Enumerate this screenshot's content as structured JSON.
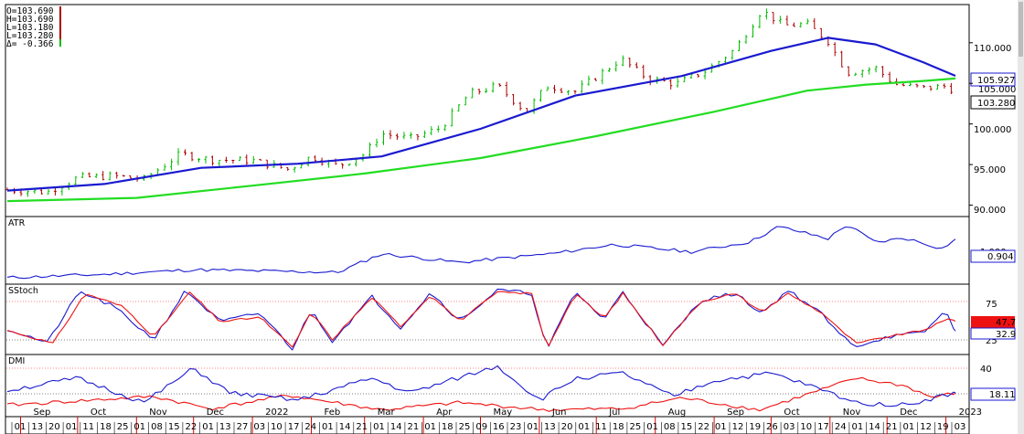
{
  "ohlc": {
    "open": "O=103.690",
    "high": "H=103.690",
    "low": "L=103.180",
    "last": "L=103.280",
    "delta": "Δ= -0.366"
  },
  "colors": {
    "up_bar": "#00bb00",
    "down_bar": "#aa0000",
    "ma_fast": "#1a1ad0",
    "ma_slow": "#22dd22",
    "stoch_k": "#ee1111",
    "stoch_d": "#1a1ad0",
    "dmi_plus": "#1a1ad0",
    "dmi_minus": "#ee1111",
    "month_tick": "#e00000",
    "panel_bg": "#ffffff"
  },
  "panels": {
    "atr": {
      "title": "ATR",
      "badge": "0.904",
      "under_badge": "1.000",
      "badge_color": "#1a1ad0"
    },
    "stoch": {
      "title": "SStoch",
      "label75": "75",
      "label25": "25",
      "badge_k": "47.7",
      "badge_d": "32.9"
    },
    "dmi": {
      "title": "DMI",
      "label40": "40",
      "badge": "18.11"
    }
  },
  "price_axis": {
    "ticks": [
      "110.000",
      "105.000",
      "100.000",
      "95.000",
      "90.000"
    ],
    "badge_ma": "105.927",
    "badge_mid": "105.000",
    "badge_last": "103.280"
  },
  "x_axis": {
    "months": [
      "Sep",
      "Oct",
      "Nov",
      "Dec",
      "2022",
      "Feb",
      "Mar",
      "Apr",
      "May",
      "Jun",
      "Jul",
      "Aug",
      "Sep",
      "Oct",
      "Nov",
      "Dec",
      "2023"
    ],
    "days": [
      "01",
      "13",
      "20",
      "01",
      "11",
      "18",
      "25",
      "01",
      "08",
      "15",
      "22",
      "01",
      "13",
      "27",
      "03",
      "10",
      "17",
      "24",
      "01",
      "14",
      "21",
      "01",
      "14",
      "21",
      "01",
      "18",
      "25",
      "09",
      "16",
      "23",
      "01",
      "13",
      "20",
      "01",
      "11",
      "18",
      "25",
      "01",
      "08",
      "15",
      "22",
      "01",
      "12",
      "19",
      "26",
      "03",
      "10",
      "17",
      "24",
      "01",
      "14",
      "21",
      "01",
      "12",
      "19",
      "03"
    ]
  },
  "chart_data": [
    {
      "type": "line",
      "title": "",
      "ylim": [
        88.6,
        114.7
      ],
      "yticks": [
        110,
        105,
        100,
        95,
        90
      ],
      "x_range": [
        "2021-08-25",
        "2023-01-06"
      ],
      "grid": false,
      "series": [
        {
          "role": "price",
          "values": [
            [
              "2021-08-25",
              91.9
            ],
            [
              "2021-09-15",
              91.6
            ],
            [
              "2021-10-01",
              93.4
            ],
            [
              "2021-10-20",
              93.6
            ],
            [
              "2021-11-05",
              93.2
            ],
            [
              "2021-11-24",
              96.3
            ],
            [
              "2021-12-10",
              95.6
            ],
            [
              "2022-01-01",
              95.5
            ],
            [
              "2022-01-20",
              94.4
            ],
            [
              "2022-02-01",
              96.0
            ],
            [
              "2022-02-15",
              94.8
            ],
            [
              "2022-03-01",
              96.3
            ],
            [
              "2022-03-10",
              98.8
            ],
            [
              "2022-03-25",
              98.2
            ],
            [
              "2022-04-10",
              99.5
            ],
            [
              "2022-04-25",
              103.7
            ],
            [
              "2022-05-10",
              104.7
            ],
            [
              "2022-05-25",
              101.5
            ],
            [
              "2022-06-05",
              104.7
            ],
            [
              "2022-06-20",
              104.0
            ],
            [
              "2022-07-01",
              105.8
            ],
            [
              "2022-07-14",
              108.0
            ],
            [
              "2022-07-28",
              105.6
            ],
            [
              "2022-08-12",
              104.9
            ],
            [
              "2022-08-28",
              106.6
            ],
            [
              "2022-09-12",
              109.2
            ],
            [
              "2022-09-26",
              114.0
            ],
            [
              "2022-10-08",
              112.1
            ],
            [
              "2022-10-20",
              112.3
            ],
            [
              "2022-10-31",
              110.2
            ],
            [
              "2022-11-10",
              106.3
            ],
            [
              "2022-11-25",
              106.9
            ],
            [
              "2022-12-05",
              104.9
            ],
            [
              "2022-12-20",
              104.4
            ],
            [
              "2023-01-03",
              104.7
            ],
            [
              "2023-01-06",
              103.3
            ]
          ]
        },
        {
          "role": "ma_fast",
          "values": [
            [
              "2021-08-25",
              91.8
            ],
            [
              "2021-10-15",
              92.6
            ],
            [
              "2021-12-05",
              94.6
            ],
            [
              "2022-01-25",
              95.1
            ],
            [
              "2022-03-10",
              96.0
            ],
            [
              "2022-05-01",
              99.4
            ],
            [
              "2022-06-20",
              103.5
            ],
            [
              "2022-08-15",
              105.9
            ],
            [
              "2022-10-01",
              109.0
            ],
            [
              "2022-10-31",
              110.6
            ],
            [
              "2022-11-25",
              109.8
            ],
            [
              "2022-12-20",
              107.6
            ],
            [
              "2023-01-06",
              105.93
            ]
          ]
        },
        {
          "role": "ma_slow",
          "values": [
            [
              "2021-08-25",
              90.5
            ],
            [
              "2021-11-01",
              90.9
            ],
            [
              "2022-01-01",
              92.4
            ],
            [
              "2022-03-01",
              93.9
            ],
            [
              "2022-05-01",
              95.8
            ],
            [
              "2022-07-01",
              98.5
            ],
            [
              "2022-09-01",
              101.5
            ],
            [
              "2022-10-20",
              104.1
            ],
            [
              "2022-11-20",
              104.85
            ],
            [
              "2022-12-20",
              105.3
            ],
            [
              "2023-01-06",
              105.6
            ]
          ]
        }
      ]
    },
    {
      "type": "line",
      "title": "ATR",
      "ylim": [
        0.25,
        1.2
      ],
      "series": [
        {
          "values": [
            [
              "2021-08-25",
              0.32
            ],
            [
              "2021-10-15",
              0.37
            ],
            [
              "2021-12-01",
              0.44
            ],
            [
              "2022-02-15",
              0.4
            ],
            [
              "2022-03-10",
              0.68
            ],
            [
              "2022-04-20",
              0.55
            ],
            [
              "2022-06-10",
              0.69
            ],
            [
              "2022-07-10",
              0.82
            ],
            [
              "2022-08-20",
              0.71
            ],
            [
              "2022-09-20",
              0.86
            ],
            [
              "2022-10-05",
              1.09
            ],
            [
              "2022-10-31",
              0.91
            ],
            [
              "2022-11-10",
              1.12
            ],
            [
              "2022-11-25",
              0.85
            ],
            [
              "2022-12-10",
              0.92
            ],
            [
              "2022-12-30",
              0.76
            ],
            [
              "2023-01-06",
              0.9
            ]
          ]
        }
      ]
    },
    {
      "type": "line",
      "title": "SStoch",
      "ylim": [
        0,
        100
      ],
      "yticks": [
        75,
        25
      ],
      "series": [
        {
          "role": "k",
          "values": [
            [
              "2021-08-25",
              34
            ],
            [
              "2021-09-18",
              14
            ],
            [
              "2021-10-05",
              90
            ],
            [
              "2021-10-25",
              70
            ],
            [
              "2021-11-10",
              24
            ],
            [
              "2021-11-29",
              92
            ],
            [
              "2021-12-15",
              47
            ],
            [
              "2022-01-05",
              54
            ],
            [
              "2022-01-22",
              8
            ],
            [
              "2022-02-01",
              62
            ],
            [
              "2022-02-12",
              20
            ],
            [
              "2022-03-05",
              84
            ],
            [
              "2022-03-20",
              40
            ],
            [
              "2022-04-05",
              88
            ],
            [
              "2022-04-20",
              48
            ],
            [
              "2022-05-10",
              92
            ],
            [
              "2022-05-28",
              90
            ],
            [
              "2022-06-05",
              6
            ],
            [
              "2022-06-20",
              90
            ],
            [
              "2022-07-05",
              52
            ],
            [
              "2022-07-15",
              90
            ],
            [
              "2022-08-05",
              12
            ],
            [
              "2022-08-25",
              78
            ],
            [
              "2022-09-12",
              90
            ],
            [
              "2022-09-26",
              62
            ],
            [
              "2022-10-10",
              90
            ],
            [
              "2022-10-28",
              60
            ],
            [
              "2022-11-05",
              38
            ],
            [
              "2022-11-15",
              14
            ],
            [
              "2022-12-01",
              24
            ],
            [
              "2022-12-20",
              34
            ],
            [
              "2023-01-03",
              52
            ],
            [
              "2023-01-06",
              47.7
            ]
          ]
        },
        {
          "role": "d",
          "values": [
            [
              "2021-08-25",
              36
            ],
            [
              "2021-09-15",
              15
            ],
            [
              "2021-10-02",
              93
            ],
            [
              "2021-10-20",
              70
            ],
            [
              "2021-11-10",
              20
            ],
            [
              "2021-11-27",
              95
            ],
            [
              "2021-12-15",
              47
            ],
            [
              "2022-01-05",
              60
            ],
            [
              "2022-01-22",
              6
            ],
            [
              "2022-02-01",
              65
            ],
            [
              "2022-02-12",
              18
            ],
            [
              "2022-03-05",
              85
            ],
            [
              "2022-03-20",
              38
            ],
            [
              "2022-04-05",
              92
            ],
            [
              "2022-04-20",
              48
            ],
            [
              "2022-05-10",
              95
            ],
            [
              "2022-05-28",
              90
            ],
            [
              "2022-06-05",
              4
            ],
            [
              "2022-06-20",
              93
            ],
            [
              "2022-07-05",
              50
            ],
            [
              "2022-07-15",
              93
            ],
            [
              "2022-08-05",
              10
            ],
            [
              "2022-08-25",
              80
            ],
            [
              "2022-09-12",
              90
            ],
            [
              "2022-09-26",
              60
            ],
            [
              "2022-10-10",
              95
            ],
            [
              "2022-10-28",
              58
            ],
            [
              "2022-11-05",
              30
            ],
            [
              "2022-11-15",
              10
            ],
            [
              "2022-12-01",
              24
            ],
            [
              "2022-12-20",
              30
            ],
            [
              "2023-01-01",
              64
            ],
            [
              "2023-01-06",
              32.9
            ]
          ]
        }
      ]
    },
    {
      "type": "line",
      "title": "DMI",
      "ylim": [
        0,
        48
      ],
      "yticks": [
        40
      ],
      "series": [
        {
          "role": "plus",
          "values": [
            [
              "2021-08-25",
              20
            ],
            [
              "2021-10-01",
              30
            ],
            [
              "2021-11-05",
              10
            ],
            [
              "2021-12-01",
              38
            ],
            [
              "2021-12-20",
              18
            ],
            [
              "2022-01-25",
              12
            ],
            [
              "2022-03-05",
              30
            ],
            [
              "2022-03-25",
              18
            ],
            [
              "2022-05-10",
              40
            ],
            [
              "2022-06-01",
              12
            ],
            [
              "2022-06-20",
              30
            ],
            [
              "2022-07-15",
              34
            ],
            [
              "2022-08-10",
              15
            ],
            [
              "2022-09-01",
              28
            ],
            [
              "2022-10-01",
              34
            ],
            [
              "2022-10-25",
              22
            ],
            [
              "2022-11-15",
              10
            ],
            [
              "2022-12-10",
              8
            ],
            [
              "2023-01-06",
              18.11
            ]
          ]
        },
        {
          "role": "minus",
          "values": [
            [
              "2021-08-25",
              8
            ],
            [
              "2021-11-10",
              15
            ],
            [
              "2021-12-10",
              5
            ],
            [
              "2022-01-20",
              16
            ],
            [
              "2022-03-10",
              4
            ],
            [
              "2022-04-20",
              10
            ],
            [
              "2022-06-05",
              4
            ],
            [
              "2022-07-15",
              5
            ],
            [
              "2022-08-15",
              14
            ],
            [
              "2022-09-25",
              4
            ],
            [
              "2022-11-15",
              30
            ],
            [
              "2022-12-10",
              24
            ],
            [
              "2022-12-25",
              14
            ],
            [
              "2023-01-06",
              18
            ]
          ]
        }
      ]
    }
  ]
}
